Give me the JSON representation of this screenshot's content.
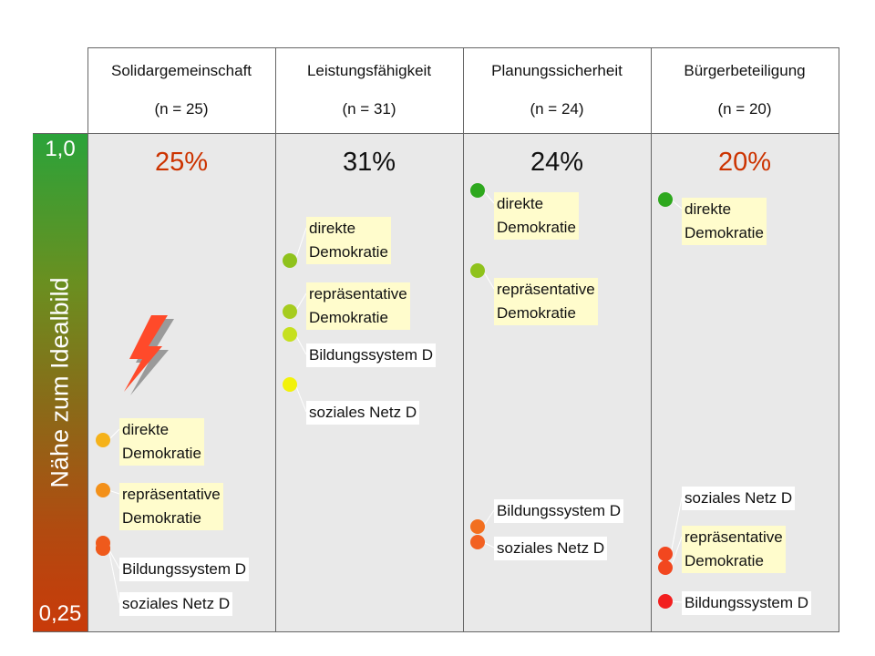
{
  "axis": {
    "top": "1,0",
    "bottom": "0,25",
    "label": "Nähe zum Idealbild"
  },
  "columns": [
    {
      "title": "Solidargemeinschaft",
      "n": "(n = 25)",
      "pct": "25%",
      "pct_color": "#cc3300",
      "items": [
        {
          "label": "direkte\nDemokratie",
          "color": "#f5b21a",
          "bg": "yellow"
        },
        {
          "label": "repräsentative\nDemokratie",
          "color": "#f39019",
          "bg": "yellow"
        },
        {
          "label": "Bildungssystem D",
          "color": "#ef5a1c",
          "bg": "white"
        },
        {
          "label": "soziales Netz D",
          "color": "#ef5a1c",
          "bg": "white"
        }
      ]
    },
    {
      "title": "Leistungsfähigkeit",
      "n": "(n = 31)",
      "pct": "31%",
      "pct_color": "#111111",
      "items": [
        {
          "label": "direkte\nDemokratie",
          "color": "#8fc21c",
          "bg": "yellow"
        },
        {
          "label": "repräsentative\nDemokratie",
          "color": "#a6cc1f",
          "bg": "yellow"
        },
        {
          "label": "Bildungssystem D",
          "color": "#c6e01e",
          "bg": "white"
        },
        {
          "label": "soziales Netz D",
          "color": "#f2f20a",
          "bg": "white"
        }
      ]
    },
    {
      "title": "Planungssicherheit",
      "n": "(n = 24)",
      "pct": "24%",
      "pct_color": "#111111",
      "items": [
        {
          "label": "direkte\nDemokratie",
          "color": "#2ea81e",
          "bg": "yellow"
        },
        {
          "label": "repräsentative\nDemokratie",
          "color": "#8fc21c",
          "bg": "yellow"
        },
        {
          "label": "Bildungssystem D",
          "color": "#f26f1f",
          "bg": "white"
        },
        {
          "label": "soziales Netz D",
          "color": "#f26122",
          "bg": "white"
        }
      ]
    },
    {
      "title": "Bürgerbeteiligung",
      "n": "(n = 20)",
      "pct": "20%",
      "pct_color": "#cc3300",
      "items": [
        {
          "label": "direkte\nDemokratie",
          "color": "#2ea81e",
          "bg": "yellow"
        },
        {
          "label": "soziales Netz D",
          "color": "#f2471f",
          "bg": "white"
        },
        {
          "label": "repräsentative\nDemokratie",
          "color": "#f2471f",
          "bg": "yellow"
        },
        {
          "label": "Bildungssystem D",
          "color": "#f21f1f",
          "bg": "white"
        }
      ]
    }
  ]
}
